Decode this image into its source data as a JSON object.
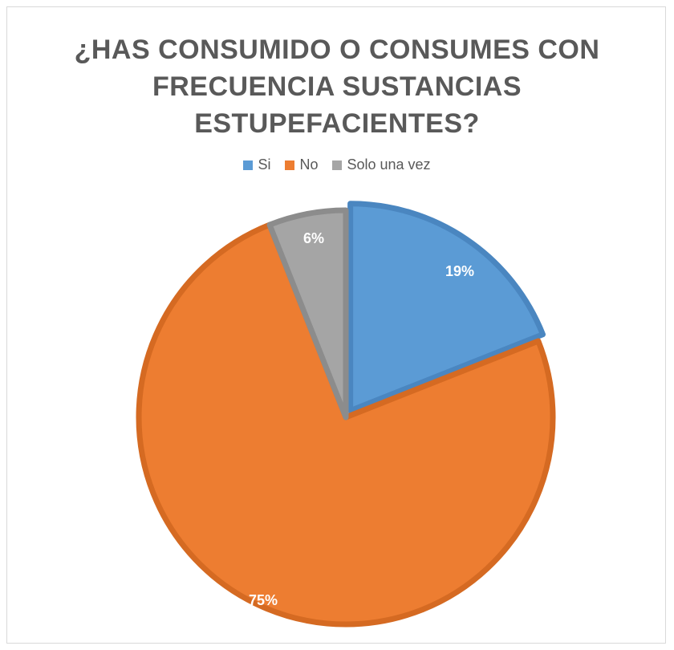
{
  "chart_data": {
    "type": "pie",
    "title_lines": [
      "¿HAS CONSUMIDO O CONSUMES CON",
      "FRECUENCIA SUSTANCIAS",
      "ESTUPEFACIENTES?"
    ],
    "categories": [
      "Si",
      "No",
      "Solo una vez"
    ],
    "values": [
      19,
      75,
      6
    ],
    "data_labels": [
      "19%",
      "75%",
      "6%"
    ],
    "colors": [
      "#5b9bd5",
      "#ed7d31",
      "#a5a5a5"
    ],
    "legend_position": "top"
  }
}
